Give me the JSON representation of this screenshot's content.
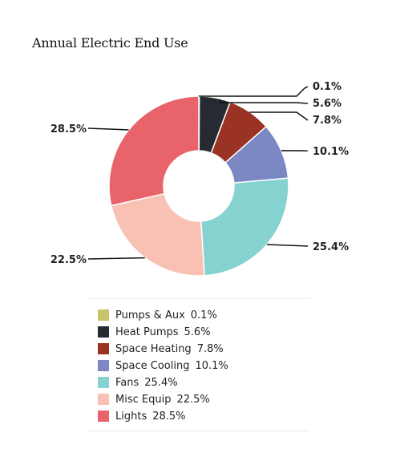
{
  "chart_data": {
    "type": "pie",
    "title": "Annual Electric End Use",
    "series": [
      {
        "name": "Pumps & Aux",
        "value": 0.1,
        "label": "0.1%",
        "color": "#c8c46a"
      },
      {
        "name": "Heat Pumps",
        "value": 5.6,
        "label": "5.6%",
        "color": "#262b32"
      },
      {
        "name": "Space Heating",
        "value": 7.8,
        "label": "7.8%",
        "color": "#9a3323"
      },
      {
        "name": "Space Cooling",
        "value": 10.1,
        "label": "10.1%",
        "color": "#7b88c3"
      },
      {
        "name": "Fans",
        "value": 25.4,
        "label": "25.4%",
        "color": "#86d2d0"
      },
      {
        "name": "Misc Equip",
        "value": 22.5,
        "label": "22.5%",
        "color": "#f8c1b4"
      },
      {
        "name": "Lights",
        "value": 28.5,
        "label": "28.5%",
        "color": "#e8636a"
      }
    ],
    "donut": true,
    "legend_position": "bottom"
  }
}
